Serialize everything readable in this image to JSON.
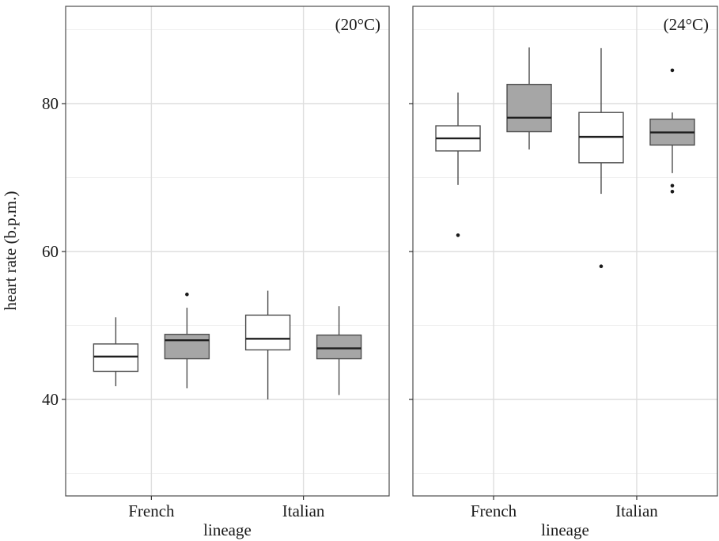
{
  "chart_data": {
    "type": "box",
    "ylabel": "heart rate (b.p.m.)",
    "ylim": [
      27,
      92.5
    ],
    "yticks": [
      40,
      60,
      80
    ],
    "grid": true,
    "panels": [
      {
        "label": "(20°C)",
        "xlabel": "lineage",
        "categories": [
          "French",
          "Italian"
        ],
        "boxes": [
          {
            "category": "French",
            "fill": "#ffffff",
            "whisker_low": 41.8,
            "q1": 43.8,
            "median": 45.8,
            "q3": 47.5,
            "whisker_high": 51.1,
            "outliers": []
          },
          {
            "category": "French",
            "fill": "#a6a6a6",
            "whisker_low": 41.5,
            "q1": 45.5,
            "median": 48.0,
            "q3": 48.8,
            "whisker_high": 52.4,
            "outliers": [
              54.2
            ]
          },
          {
            "category": "Italian",
            "fill": "#ffffff",
            "whisker_low": 40.0,
            "q1": 46.7,
            "median": 48.2,
            "q3": 51.4,
            "whisker_high": 54.7,
            "outliers": []
          },
          {
            "category": "Italian",
            "fill": "#a6a6a6",
            "whisker_low": 40.6,
            "q1": 45.5,
            "median": 46.9,
            "q3": 48.7,
            "whisker_high": 52.6,
            "outliers": []
          }
        ]
      },
      {
        "label": "(24°C)",
        "xlabel": "lineage",
        "categories": [
          "French",
          "Italian"
        ],
        "boxes": [
          {
            "category": "French",
            "fill": "#ffffff",
            "whisker_low": 69.0,
            "q1": 73.6,
            "median": 75.3,
            "q3": 77.0,
            "whisker_high": 81.5,
            "outliers": [
              62.2
            ]
          },
          {
            "category": "French",
            "fill": "#a6a6a6",
            "whisker_low": 73.8,
            "q1": 76.2,
            "median": 78.1,
            "q3": 82.6,
            "whisker_high": 87.6,
            "outliers": []
          },
          {
            "category": "Italian",
            "fill": "#ffffff",
            "whisker_low": 67.8,
            "q1": 72.0,
            "median": 75.5,
            "q3": 78.8,
            "whisker_high": 87.5,
            "outliers": [
              58.0
            ]
          },
          {
            "category": "Italian",
            "fill": "#a6a6a6",
            "whisker_low": 70.6,
            "q1": 74.4,
            "median": 76.1,
            "q3": 77.9,
            "whisker_high": 78.8,
            "outliers": [
              84.5,
              68.9,
              68.1
            ]
          }
        ]
      }
    ]
  }
}
